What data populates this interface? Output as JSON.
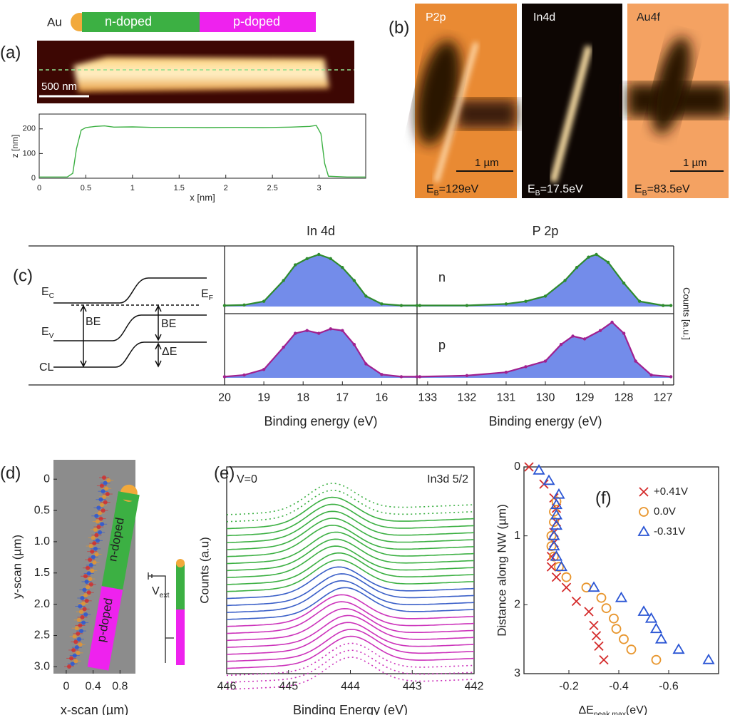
{
  "labels": {
    "a": "(a)",
    "b": "(b)",
    "c": "(c)",
    "d": "(d)",
    "e": "(e)",
    "f": "(f)"
  },
  "schematic_a": {
    "au": "Au",
    "n": "n-doped",
    "p": "p-doped",
    "scale": "500 nm"
  },
  "images_b": [
    {
      "title": "P2p",
      "scale": "1 µm",
      "eb": {
        "main": "E",
        "sub": "B",
        "rest": "=129eV"
      }
    },
    {
      "title": "In4d",
      "eb": {
        "main": "E",
        "sub": "B",
        "rest": "=17.5eV"
      }
    },
    {
      "title": "Au4f",
      "scale": "1 µm",
      "eb": {
        "main": "E",
        "sub": "B",
        "rest": "=83.5eV"
      }
    }
  ],
  "band_diagram": {
    "ec": {
      "main": "E",
      "sub": "C"
    },
    "ef": {
      "main": "E",
      "sub": "F"
    },
    "ev": {
      "main": "E",
      "sub": "V"
    },
    "be1": "BE",
    "be2": "BE",
    "de": "ΔE",
    "cl": "CL"
  },
  "panel_c": {
    "ylabel": "Counts [a.u.]"
  },
  "panel_d": {
    "n": "n-doped",
    "p": "p-doped",
    "vext": {
      "main": "V",
      "sub": "ext"
    }
  },
  "chart_data": [
    {
      "type": "line",
      "color": "#3cb043",
      "x": [
        0,
        0.3,
        0.36,
        0.4,
        0.45,
        0.5,
        0.6,
        0.7,
        0.8,
        1,
        1.2,
        1.5,
        1.8,
        2.1,
        2.4,
        2.7,
        2.9,
        2.97,
        3.02,
        3.06,
        3.1,
        3.3,
        3.5
      ],
      "values": [
        5,
        5,
        20,
        120,
        195,
        205,
        210,
        212,
        207,
        208,
        206,
        206,
        205,
        206,
        205,
        207,
        210,
        214,
        180,
        60,
        8,
        5,
        5
      ],
      "xlim": [
        0,
        3.5
      ],
      "xticks": [
        0,
        0.5,
        1,
        1.5,
        2,
        2.5,
        3
      ],
      "ylim": [
        0,
        260
      ],
      "yticks": [
        0,
        100,
        200
      ],
      "xlabel": "x [nm]",
      "ylabel": "z [nm]"
    },
    {
      "type": "spectrum",
      "title": "In 4d",
      "color": "#2e8b2e",
      "fill": "#5a78e6",
      "x": [
        20,
        19.5,
        19,
        18.5,
        18.2,
        17.9,
        17.6,
        17.3,
        17,
        16.7,
        16.4,
        16,
        15.5,
        15.1
      ],
      "values": [
        0.02,
        0.03,
        0.1,
        0.5,
        0.8,
        0.92,
        1.0,
        0.92,
        0.75,
        0.5,
        0.2,
        0.05,
        0.02,
        0.02
      ],
      "xlim": [
        20,
        15.1
      ],
      "ylim": [
        0,
        1
      ]
    },
    {
      "type": "spectrum",
      "title": "P 2p",
      "label": "n",
      "color": "#2e8b2e",
      "fill": "#5a78e6",
      "x": [
        133.2,
        132,
        131,
        130.5,
        130,
        129.5,
        129.2,
        128.9,
        128.7,
        128.4,
        128,
        127.6,
        127,
        126.8
      ],
      "values": [
        0.02,
        0.02,
        0.05,
        0.1,
        0.2,
        0.5,
        0.75,
        0.95,
        1.0,
        0.85,
        0.45,
        0.1,
        0.02,
        0.02
      ],
      "xlim": [
        133.27,
        126.73
      ],
      "ylim": [
        0,
        1
      ]
    },
    {
      "type": "spectrum",
      "color": "#a0208f",
      "fill": "#5a78e6",
      "x": [
        20,
        19.5,
        19,
        18.5,
        18.2,
        17.9,
        17.6,
        17.3,
        17,
        16.7,
        16.4,
        16,
        15.5,
        15.1
      ],
      "values": [
        0.02,
        0.05,
        0.15,
        0.55,
        0.8,
        0.85,
        0.8,
        0.88,
        0.85,
        0.6,
        0.25,
        0.06,
        0.02,
        0.02
      ],
      "xlim": [
        20,
        15.1
      ],
      "xticks": [
        20,
        19,
        18,
        17,
        16
      ],
      "ylim": [
        0,
        1
      ],
      "xlabel": "Binding energy (eV)"
    },
    {
      "type": "spectrum",
      "label": "p",
      "color": "#a0208f",
      "fill": "#5a78e6",
      "x": [
        133.2,
        132,
        131,
        130.5,
        130,
        129.6,
        129.3,
        129,
        128.6,
        128.3,
        128,
        127.7,
        127.3,
        126.8
      ],
      "values": [
        0.02,
        0.04,
        0.1,
        0.2,
        0.3,
        0.6,
        0.75,
        0.7,
        0.85,
        1.0,
        0.8,
        0.3,
        0.05,
        0.02
      ],
      "xlim": [
        133.27,
        126.73
      ],
      "xticks": [
        133,
        132,
        131,
        130,
        129,
        128,
        127
      ],
      "ylim": [
        0,
        1
      ],
      "xlabel": "Binding energy (eV)"
    },
    {
      "type": "image",
      "xlim": [
        -0.19,
        1.03
      ],
      "xticks": [
        0,
        0.4,
        0.8
      ],
      "ylim": [
        -0.31,
        3.11
      ],
      "y_inverted": true,
      "yticks": [
        0,
        0.5,
        {
          "value": 1,
          "label": "1.0"
        },
        1.5,
        {
          "value": 2,
          "label": "2.0"
        },
        2.5,
        {
          "value": 3,
          "label": "3.0"
        }
      ],
      "xlabel": "x-scan (µm)",
      "ylabel": "y-scan (µm)"
    },
    {
      "type": "stack",
      "xlim": [
        446,
        442
      ],
      "xticks": [
        446,
        445,
        444,
        443,
        442
      ],
      "xlabel": "Binding Energy (eV)",
      "ylabel": "Counts (a.u)",
      "annotations": [
        "V=0",
        "In3d 5/2"
      ],
      "series": [
        {
          "color": "#3cb043",
          "dotted": true,
          "peak": 444.3
        },
        {
          "color": "#3cb043",
          "dotted": true,
          "peak": 444.3
        },
        {
          "color": "#3cb043",
          "dotted": false,
          "peak": 444.3
        },
        {
          "color": "#3cb043",
          "dotted": false,
          "peak": 444.3
        },
        {
          "color": "#3cb043",
          "dotted": false,
          "peak": 444.3
        },
        {
          "color": "#3cb043",
          "dotted": false,
          "peak": 444.3
        },
        {
          "color": "#3cb043",
          "dotted": false,
          "peak": 444.3
        },
        {
          "color": "#3cb043",
          "dotted": false,
          "peak": 444.25
        },
        {
          "color": "#3cb043",
          "dotted": false,
          "peak": 444.25
        },
        {
          "color": "#3cb043",
          "dotted": false,
          "peak": 444.25
        },
        {
          "color": "#3cb043",
          "dotted": false,
          "peak": 444.2
        },
        {
          "color": "#3cb043",
          "dotted": false,
          "peak": 444.2
        },
        {
          "color": "#3a5fc8",
          "dotted": false,
          "peak": 444.2
        },
        {
          "color": "#3a5fc8",
          "dotted": false,
          "peak": 444.15
        },
        {
          "color": "#3a5fc8",
          "dotted": false,
          "peak": 444.15
        },
        {
          "color": "#3a5fc8",
          "dotted": false,
          "peak": 444.1
        },
        {
          "color": "#cc33bb",
          "dotted": false,
          "peak": 444.15
        },
        {
          "color": "#cc33bb",
          "dotted": false,
          "peak": 444.15
        },
        {
          "color": "#cc33bb",
          "dotted": false,
          "peak": 444.1
        },
        {
          "color": "#cc33bb",
          "dotted": false,
          "peak": 444.05
        },
        {
          "color": "#cc33bb",
          "dotted": false,
          "peak": 444.05
        },
        {
          "color": "#cc33bb",
          "dotted": false,
          "peak": 444.0
        },
        {
          "color": "#cc33bb",
          "dotted": false,
          "peak": 444.0
        },
        {
          "color": "#cc33bb",
          "dotted": true,
          "peak": 444.0
        },
        {
          "color": "#cc33bb",
          "dotted": true,
          "peak": 444.0
        },
        {
          "color": "#cc33bb",
          "dotted": true,
          "peak": 444.0
        }
      ]
    },
    {
      "type": "scatter",
      "xlim": [
        -0.02,
        -0.8
      ],
      "xticks": [
        -0.2,
        -0.4,
        -0.6
      ],
      "ylim": [
        0,
        3
      ],
      "yticks": [
        0,
        1,
        2,
        3
      ],
      "y_inverted": true,
      "legend": "upper right",
      "ylabel": "Distance along NW (µm)",
      "xlabel": {
        "main": "ΔE",
        "sub": "peak max",
        "rest": "(eV)"
      },
      "series": [
        {
          "name": "+0.41V",
          "color": "#d42a2a",
          "marker": "x",
          "x": [
            -0.04,
            -0.1,
            -0.14,
            -0.15,
            -0.15,
            -0.14,
            -0.14,
            -0.13,
            -0.13,
            -0.15,
            -0.19,
            -0.23,
            -0.28,
            -0.3,
            -0.31,
            -0.32,
            -0.34
          ],
          "values": [
            0,
            0.25,
            0.45,
            0.6,
            0.8,
            0.95,
            1.1,
            1.3,
            1.45,
            1.6,
            1.75,
            1.95,
            2.1,
            2.3,
            2.45,
            2.6,
            2.8
          ]
        },
        {
          "name": "0.0V",
          "color": "#e8962e",
          "marker": "o",
          "x": [
            -0.15,
            -0.14,
            -0.14,
            -0.13,
            -0.13,
            -0.14,
            -0.16,
            -0.19,
            -0.27,
            -0.33,
            -0.35,
            -0.38,
            -0.39,
            -0.42,
            -0.45,
            -0.55
          ],
          "values": [
            0.5,
            0.65,
            0.8,
            1.0,
            1.15,
            1.3,
            1.45,
            1.6,
            1.75,
            1.9,
            2.05,
            2.2,
            2.35,
            2.5,
            2.65,
            2.8
          ]
        },
        {
          "name": "-0.31V",
          "color": "#2a55d4",
          "marker": "^",
          "x": [
            -0.08,
            -0.12,
            -0.16,
            -0.15,
            -0.15,
            -0.15,
            -0.14,
            -0.14,
            -0.15,
            -0.17,
            -0.3,
            -0.41,
            -0.5,
            -0.53,
            -0.55,
            -0.57,
            -0.64,
            -0.76
          ],
          "values": [
            0.05,
            0.2,
            0.4,
            0.55,
            0.7,
            0.85,
            1.0,
            1.15,
            1.3,
            1.45,
            1.75,
            1.9,
            2.1,
            2.2,
            2.35,
            2.5,
            2.65,
            2.8
          ]
        }
      ]
    }
  ]
}
